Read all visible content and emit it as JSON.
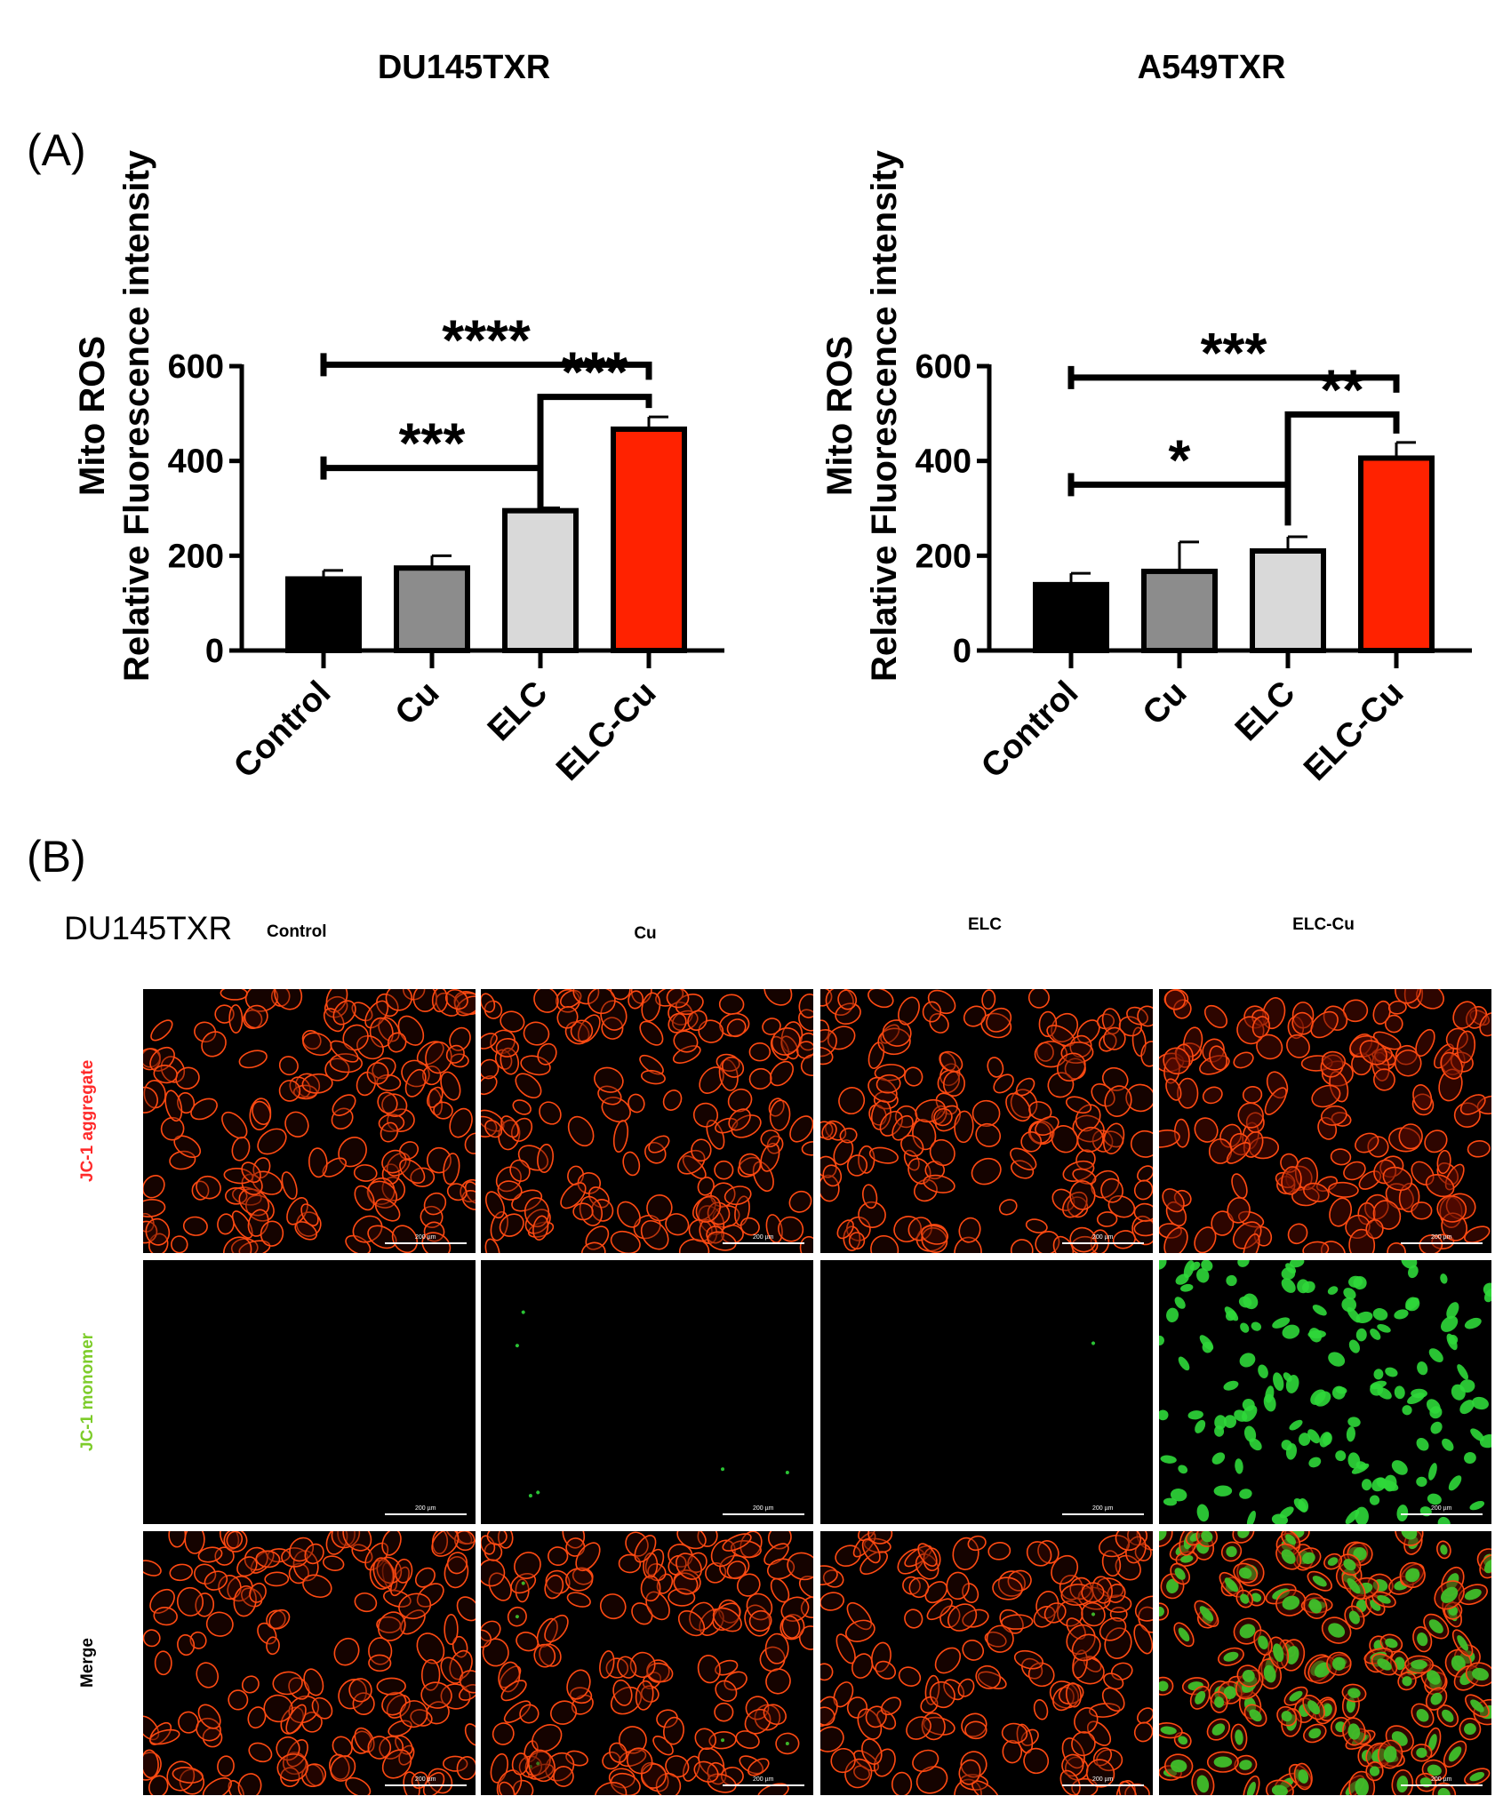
{
  "panel_a_label": "(A)",
  "panel_b_label": "(B)",
  "chart_data": [
    {
      "type": "bar",
      "title": "DU145TXR",
      "ylabel_line1": "Mito ROS",
      "ylabel_line2": "Relative Fluorescence intensity",
      "categories": [
        "Control",
        "Cu",
        "ELC",
        "ELC-Cu"
      ],
      "values": [
        151,
        174,
        295,
        467
      ],
      "errors": [
        18,
        26,
        6,
        26
      ],
      "colors": [
        "#000000",
        "#8c8c8c",
        "#d9d9d9",
        "#ff2200"
      ],
      "ylim": [
        0,
        600
      ],
      "yticks": [
        0,
        200,
        400,
        600
      ],
      "significance": [
        {
          "from": 0,
          "to": 3,
          "label": "****",
          "y": 603
        },
        {
          "from": 2,
          "to": 3,
          "label": "***",
          "y": 535
        },
        {
          "from": 0,
          "to": 2,
          "label": "***",
          "y": 385
        }
      ]
    },
    {
      "type": "bar",
      "title": "A549TXR",
      "ylabel_line1": "Mito ROS",
      "ylabel_line2": "Relative Fluorescence intensity",
      "categories": [
        "Control",
        "Cu",
        "ELC",
        "ELC-Cu"
      ],
      "values": [
        139,
        167,
        210,
        406
      ],
      "errors": [
        24,
        62,
        30,
        33
      ],
      "colors": [
        "#000000",
        "#8c8c8c",
        "#d9d9d9",
        "#ff2200"
      ],
      "ylim": [
        0,
        600
      ],
      "yticks": [
        0,
        200,
        400,
        600
      ],
      "significance": [
        {
          "from": 0,
          "to": 3,
          "label": "***",
          "y": 576
        },
        {
          "from": 2,
          "to": 3,
          "label": "**",
          "y": 498
        },
        {
          "from": 0,
          "to": 2,
          "label": "*",
          "y": 350
        }
      ]
    }
  ],
  "panel_b": {
    "cell_line": "DU145TXR",
    "conditions": [
      "Control",
      "Cu",
      "ELC",
      "ELC-Cu"
    ],
    "rows": [
      {
        "label": "JC-1 aggregate",
        "color": "#ff2a2a",
        "stain": "red"
      },
      {
        "label": "JC-1 monomer",
        "color": "#7dcc2a",
        "stain": "green"
      },
      {
        "label": "Merge",
        "color": "#000000",
        "stain": "merge"
      }
    ],
    "green_intensity": [
      0.0,
      0.04,
      0.015,
      1.0
    ],
    "scale_bar_text": "200 µm"
  }
}
